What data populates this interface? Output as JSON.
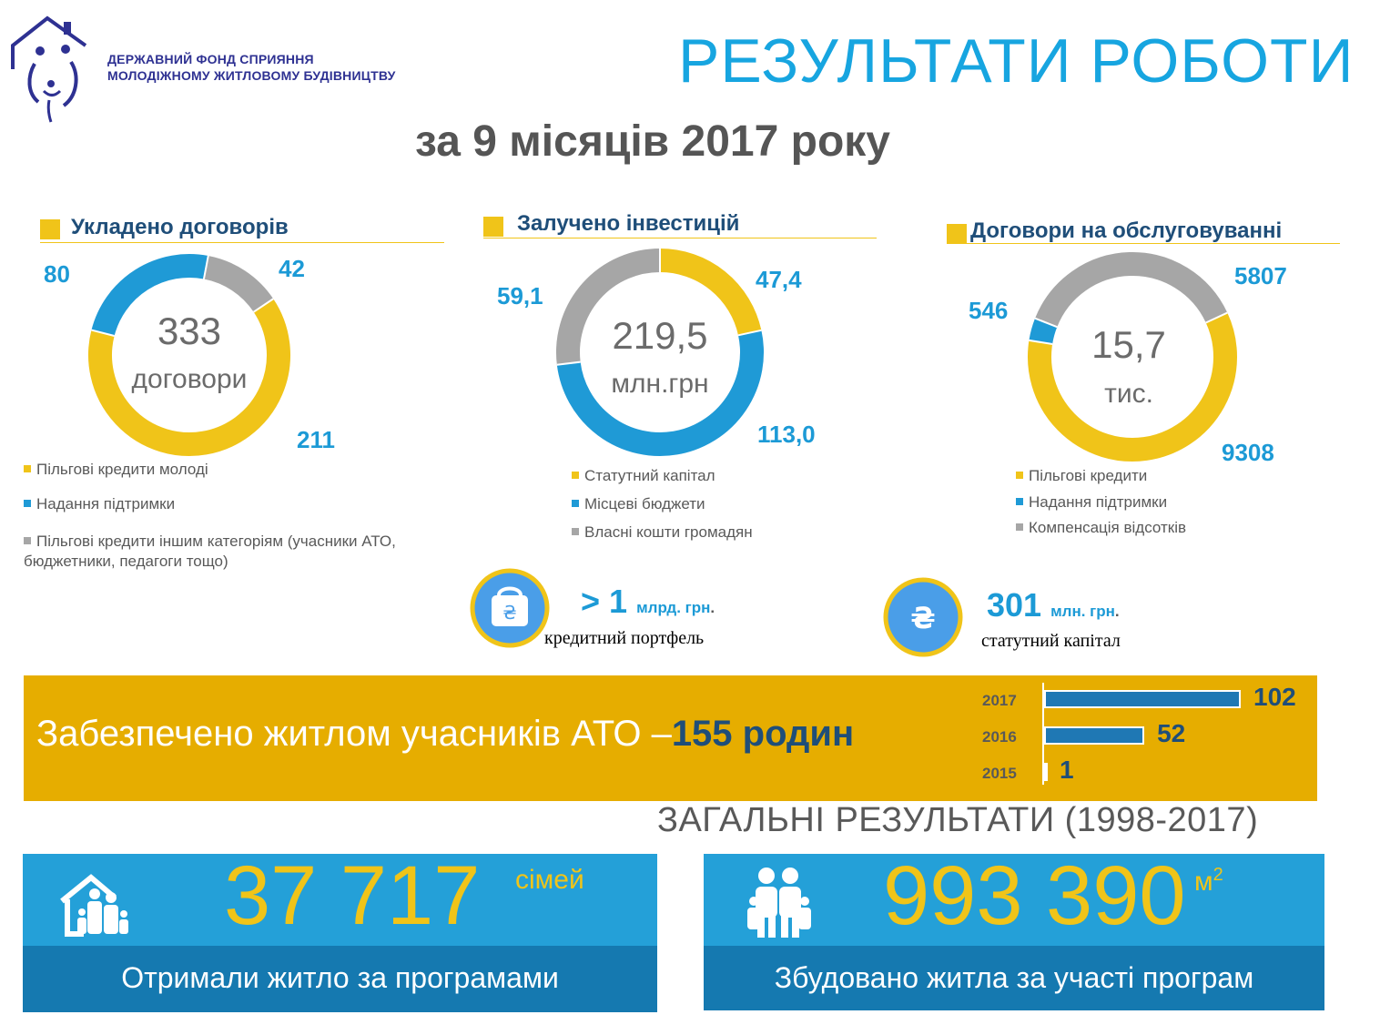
{
  "logo": {
    "line1": "ДЕРЖАВНИЙ ФОНД СПРИЯННЯ",
    "line2": "МОЛОДІЖНОМУ ЖИТЛОВОМУ БУДІВНИЦТВУ"
  },
  "title": "РЕЗУЛЬТАТИ РОБОТИ",
  "subtitle": "за 9 місяців 2017 року",
  "colors": {
    "yellow": "#f0c419",
    "blue": "#1f9ad6",
    "gray": "#a6a6a6",
    "banner": "#e6ad00",
    "panel": "#24a0d8",
    "panel_dark": "#1579b0"
  },
  "chart_data": [
    {
      "type": "pie",
      "title": "Укладено договорів",
      "center_value": "333",
      "center_unit": "договори",
      "categories": [
        "Пільгові кредити молоді",
        "Надання підтримки",
        "Пільгові кредити іншим категоріям (учасники АТО, бюджетники, педагоги тощо)"
      ],
      "values": [
        211,
        80,
        42
      ],
      "value_labels": [
        "211",
        "80",
        "42"
      ],
      "colors": [
        "#f0c419",
        "#1f9ad6",
        "#a6a6a6"
      ],
      "legend": "bottom"
    },
    {
      "type": "pie",
      "title": "Залучено інвестицій",
      "center_value": "219,5",
      "center_unit": "млн.грн",
      "categories": [
        "Статутний капітал",
        "Місцеві бюджети",
        "Власні кошти громадян"
      ],
      "values": [
        47.4,
        113.0,
        59.1
      ],
      "value_labels": [
        "47,4",
        "113,0",
        "59,1"
      ],
      "colors": [
        "#f0c419",
        "#1f9ad6",
        "#a6a6a6"
      ],
      "legend": "bottom"
    },
    {
      "type": "pie",
      "title": "Договори на обслуговуванні",
      "center_value": "15,7",
      "center_unit": "тис.",
      "categories": [
        "Пільгові кредити",
        "Надання підтримки",
        "Компенсація відсотків"
      ],
      "values": [
        9308,
        546,
        5807
      ],
      "value_labels": [
        "9308",
        "546",
        "5807"
      ],
      "colors": [
        "#f0c419",
        "#1f9ad6",
        "#a6a6a6"
      ],
      "legend": "bottom"
    },
    {
      "type": "bar",
      "orientation": "horizontal",
      "categories": [
        "2017",
        "2016",
        "2015"
      ],
      "values": [
        102,
        52,
        1
      ],
      "xlim": [
        0,
        102
      ]
    }
  ],
  "stats": {
    "portfolio": {
      "value": "> 1",
      "unit": "млрд. грн",
      "dot": ".",
      "caption": "кредитний портфель",
      "icon": "wallet-hryvnia-icon"
    },
    "capital": {
      "value": "301",
      "unit": "млн. грн",
      "dot": ".",
      "caption": "статутний капітал",
      "icon": "hryvnia-coin-icon"
    }
  },
  "banner": {
    "text": "Забезпечено житлом учасників АТО –",
    "highlight": "155 родин"
  },
  "general": {
    "title": "ЗАГАЛЬНІ  РЕЗУЛЬТАТИ (1998-2017)",
    "families": {
      "value": "37 717",
      "unit": "сімей",
      "caption": "Отримали житло за програмами",
      "icon": "family-house-icon"
    },
    "area": {
      "value": "993 390",
      "unit": "м",
      "unit_sup": "2",
      "caption": "Збудовано житла за участі програм",
      "icon": "family-icon"
    }
  }
}
